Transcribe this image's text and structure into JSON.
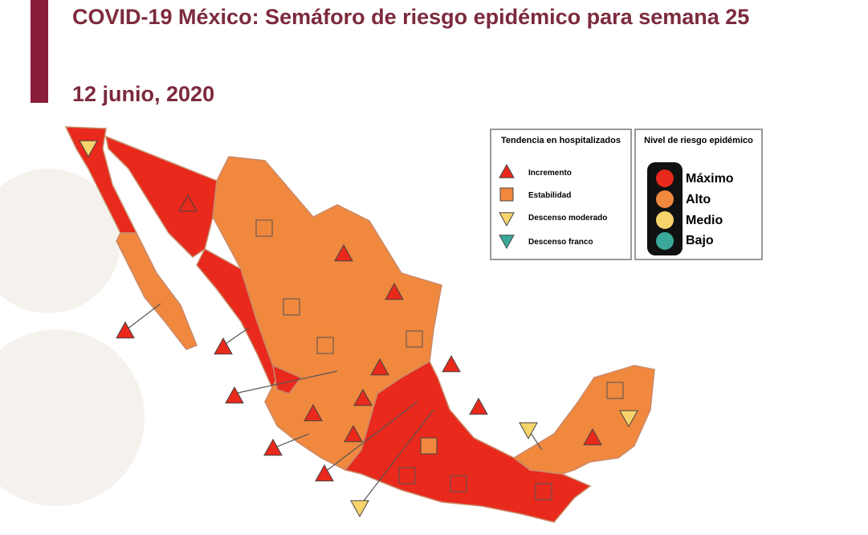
{
  "header": {
    "title": "COVID-19 México: Semáforo de riesgo epidémico para semana 25",
    "date": "12 junio, 2020"
  },
  "legend_trend": {
    "title": "Tendencia en hospitalizados",
    "items": [
      "Incremento",
      "Estabilidad",
      "Descenso moderado",
      "Descenso franco"
    ]
  },
  "legend_risk": {
    "title": "Nivel de riesgo epidémico",
    "items": [
      "Máximo",
      "Alto",
      "Medio",
      "Bajo"
    ]
  }
}
